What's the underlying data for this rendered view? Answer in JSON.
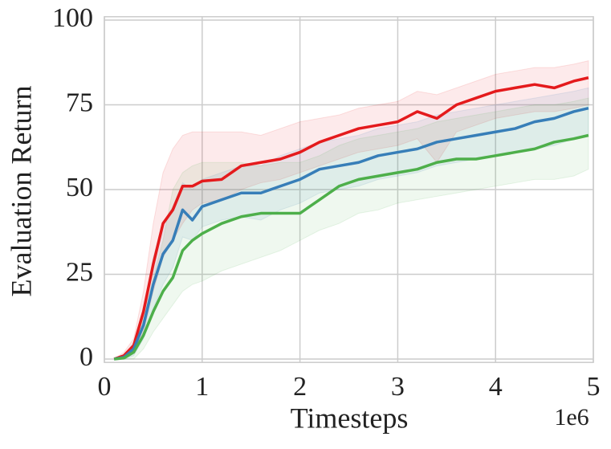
{
  "chart_data": {
    "type": "line",
    "xlabel": "Timesteps",
    "ylabel": "Evaluation Return",
    "x_offset_label": "1e6",
    "x": [
      0.1,
      0.2,
      0.3,
      0.4,
      0.5,
      0.6,
      0.7,
      0.8,
      0.9,
      1.0,
      1.2,
      1.4,
      1.6,
      1.8,
      2.0,
      2.2,
      2.4,
      2.6,
      2.8,
      3.0,
      3.2,
      3.4,
      3.6,
      3.8,
      4.0,
      4.2,
      4.4,
      4.6,
      4.8,
      4.95
    ],
    "series": [
      {
        "color": "#e41a1c",
        "values": [
          0,
          1,
          4,
          14,
          28,
          40,
          44,
          51,
          51,
          52.5,
          53,
          57,
          58,
          59,
          61,
          64,
          66,
          68,
          69,
          70,
          73,
          71,
          75,
          77,
          79,
          80,
          81,
          80,
          82,
          83
        ],
        "lower": [
          0,
          0,
          2,
          8,
          20,
          30,
          35,
          40,
          44,
          46,
          47,
          50,
          52,
          53,
          55,
          57,
          59,
          61,
          62,
          63,
          65,
          58,
          67,
          69,
          71,
          72,
          73,
          73,
          74,
          75
        ],
        "upper": [
          0,
          2,
          6,
          20,
          40,
          55,
          62,
          66,
          67,
          67,
          67,
          67,
          66,
          68,
          70,
          71,
          72,
          74,
          75,
          76,
          79,
          78,
          80,
          82,
          84,
          85,
          86,
          86,
          87,
          88
        ]
      },
      {
        "color": "#377eb8",
        "values": [
          0,
          0.5,
          3,
          10,
          22,
          31,
          35,
          44,
          41,
          45,
          47,
          49,
          49,
          51,
          53,
          56,
          57,
          58,
          60,
          61,
          62,
          64,
          65,
          66,
          67,
          68,
          70,
          71,
          73,
          74
        ],
        "lower": [
          0,
          0,
          1,
          6,
          15,
          22,
          27,
          36,
          35,
          39,
          41,
          42,
          41,
          44,
          46,
          49,
          50,
          51,
          53,
          54,
          55,
          57,
          58,
          59,
          60,
          61,
          62,
          63,
          65,
          66
        ],
        "upper": [
          0,
          1,
          5,
          15,
          30,
          40,
          45,
          52,
          50,
          53,
          55,
          57,
          57,
          60,
          62,
          64,
          65,
          66,
          68,
          69,
          70,
          72,
          73,
          74,
          75,
          76,
          77,
          78,
          79,
          80
        ]
      },
      {
        "color": "#4daf4a",
        "values": [
          0,
          0.3,
          2,
          7,
          14,
          20,
          24,
          32,
          35,
          37,
          40,
          42,
          43,
          43,
          43,
          47,
          51,
          53,
          54,
          55,
          56,
          58,
          59,
          59,
          60,
          61,
          62,
          64,
          65,
          66
        ],
        "lower": [
          0,
          0,
          0,
          3,
          8,
          12,
          16,
          20,
          22,
          23,
          26,
          28,
          30,
          32,
          35,
          38,
          40,
          43,
          44,
          46,
          47,
          48,
          49,
          50,
          51,
          52,
          53,
          53,
          54,
          56
        ],
        "upper": [
          0,
          1,
          4,
          12,
          24,
          35,
          50,
          55,
          57,
          58,
          58,
          58,
          57,
          58,
          58,
          60,
          63,
          65,
          66,
          67,
          68,
          70,
          71,
          72,
          73,
          74,
          75,
          75,
          76,
          77
        ]
      }
    ],
    "xlim": [
      0,
      5
    ],
    "xticks": [
      0,
      1,
      2,
      3,
      4,
      5
    ],
    "ylim": [
      -1,
      101
    ],
    "yticks": [
      0,
      25,
      50,
      75,
      100
    ],
    "grid": true
  }
}
